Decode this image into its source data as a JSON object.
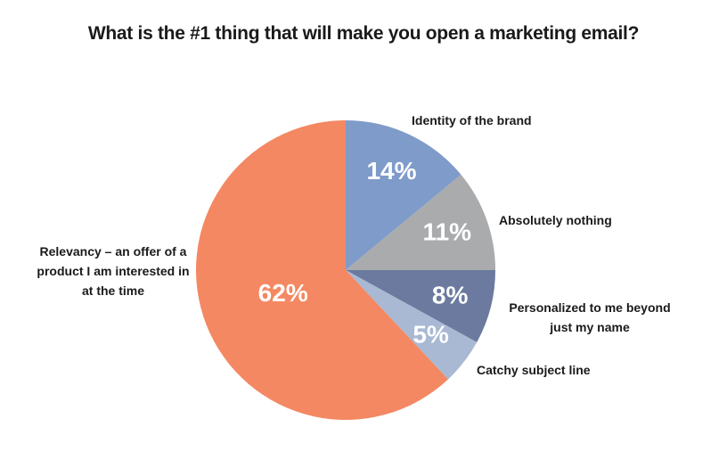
{
  "chart_data": {
    "type": "pie",
    "title": "What is the #1 thing that will make you open a marketing email?",
    "categories": [
      "Identity of the brand",
      "Absolutely nothing",
      "Personalized to me beyond just my name",
      "Catchy subject line",
      "Relevancy – an offer of a product I am interested in at the time"
    ],
    "values": [
      14,
      11,
      8,
      5,
      62
    ],
    "value_labels": [
      "14%",
      "11%",
      "8%",
      "5%",
      "62%"
    ],
    "colors": [
      "#7f9bc9",
      "#a9abad",
      "#6b7a9e",
      "#a9b8d3",
      "#f48862"
    ]
  }
}
